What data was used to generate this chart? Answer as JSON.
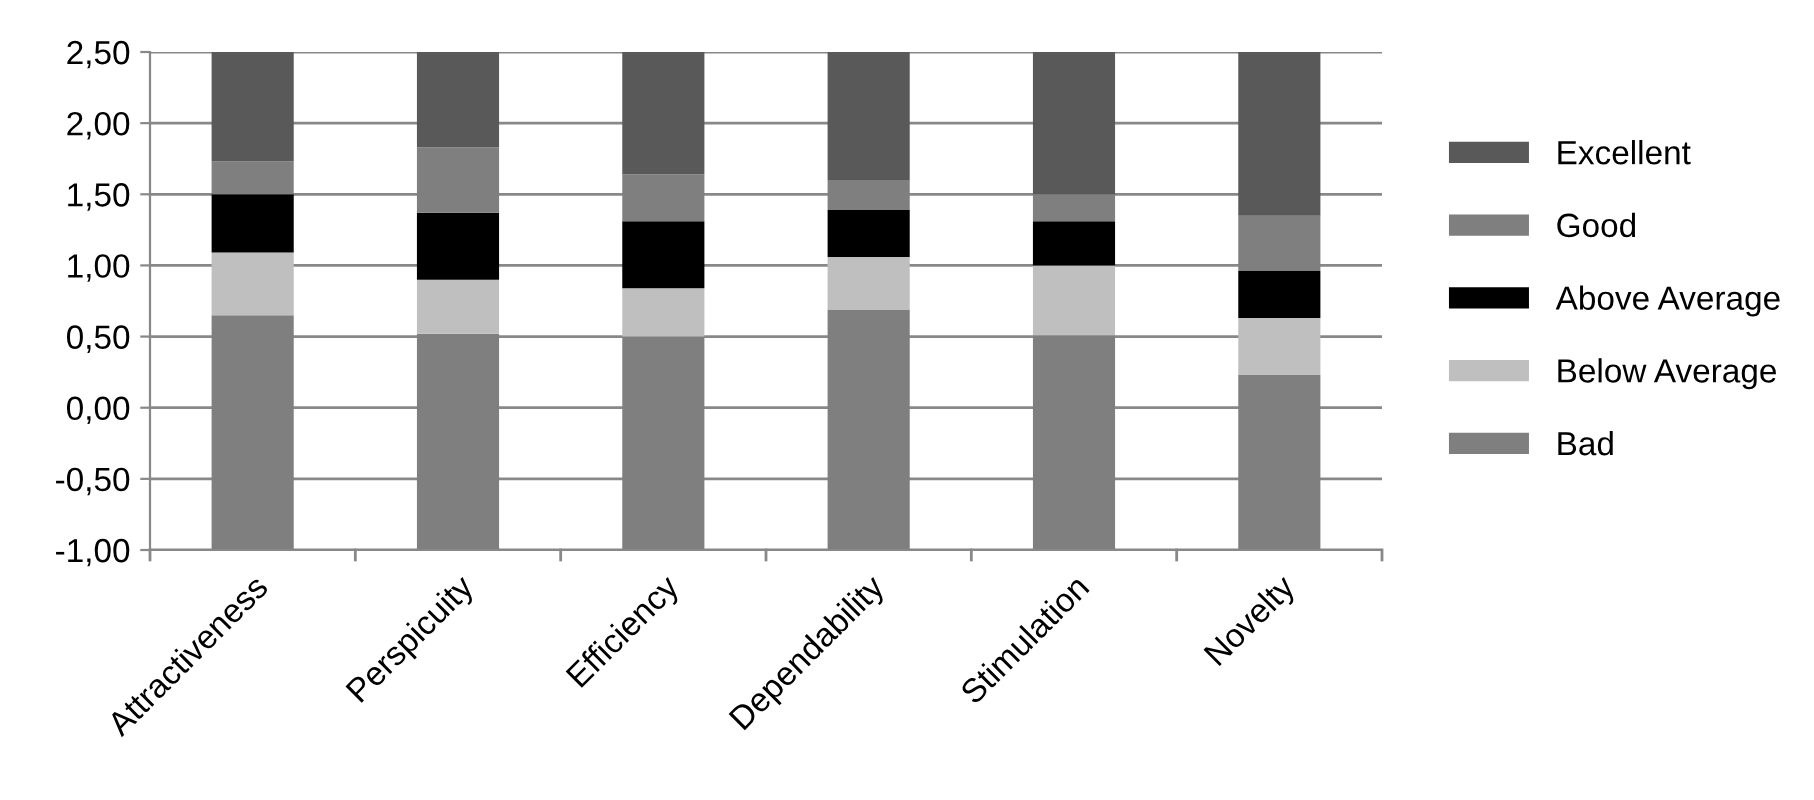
{
  "chart_data": {
    "type": "bar",
    "categories": [
      "Attractiveness",
      "Perspicuity",
      "Efficiency",
      "Dependability",
      "Stimulation",
      "Novelty"
    ],
    "series": [
      {
        "name": "Bad",
        "color": "#7f7f7f",
        "base": [
          -1,
          -1,
          -1,
          -1,
          -1,
          -1
        ],
        "values": [
          1.65,
          1.52,
          1.5,
          1.69,
          1.51,
          1.23
        ]
      },
      {
        "name": "Below Average",
        "color": "#bfbfbf",
        "base": [
          0.65,
          0.52,
          0.5,
          0.69,
          0.51,
          0.23
        ],
        "values": [
          0.44,
          0.38,
          0.34,
          0.37,
          0.49,
          0.4
        ]
      },
      {
        "name": "Above Average",
        "color": "#000000",
        "base": [
          1.09,
          0.9,
          0.84,
          1.06,
          1.0,
          0.63
        ],
        "values": [
          0.41,
          0.47,
          0.47,
          0.33,
          0.31,
          0.33
        ]
      },
      {
        "name": "Good",
        "color": "#7f7f7f",
        "base": [
          1.5,
          1.37,
          1.31,
          1.39,
          1.31,
          0.96
        ],
        "values": [
          0.23,
          0.46,
          0.33,
          0.21,
          0.19,
          0.39
        ]
      },
      {
        "name": "Excellent",
        "color": "#595959",
        "base": [
          1.73,
          1.83,
          1.64,
          1.6,
          1.5,
          1.35
        ],
        "values": [
          0.77,
          0.67,
          0.86,
          0.9,
          1.0,
          1.15
        ]
      }
    ],
    "ylim": [
      -1,
      2.5
    ],
    "yticks": [
      {
        "value": -1,
        "label": "-1,00"
      },
      {
        "value": -0.5,
        "label": "-0,50"
      },
      {
        "value": 0,
        "label": "0,00"
      },
      {
        "value": 0.5,
        "label": "0,50"
      },
      {
        "value": 1,
        "label": "1,00"
      },
      {
        "value": 1.5,
        "label": "1,50"
      },
      {
        "value": 2,
        "label": "2,00"
      },
      {
        "value": 2.5,
        "label": "2,50"
      }
    ],
    "grid": "y",
    "legend": "right"
  }
}
